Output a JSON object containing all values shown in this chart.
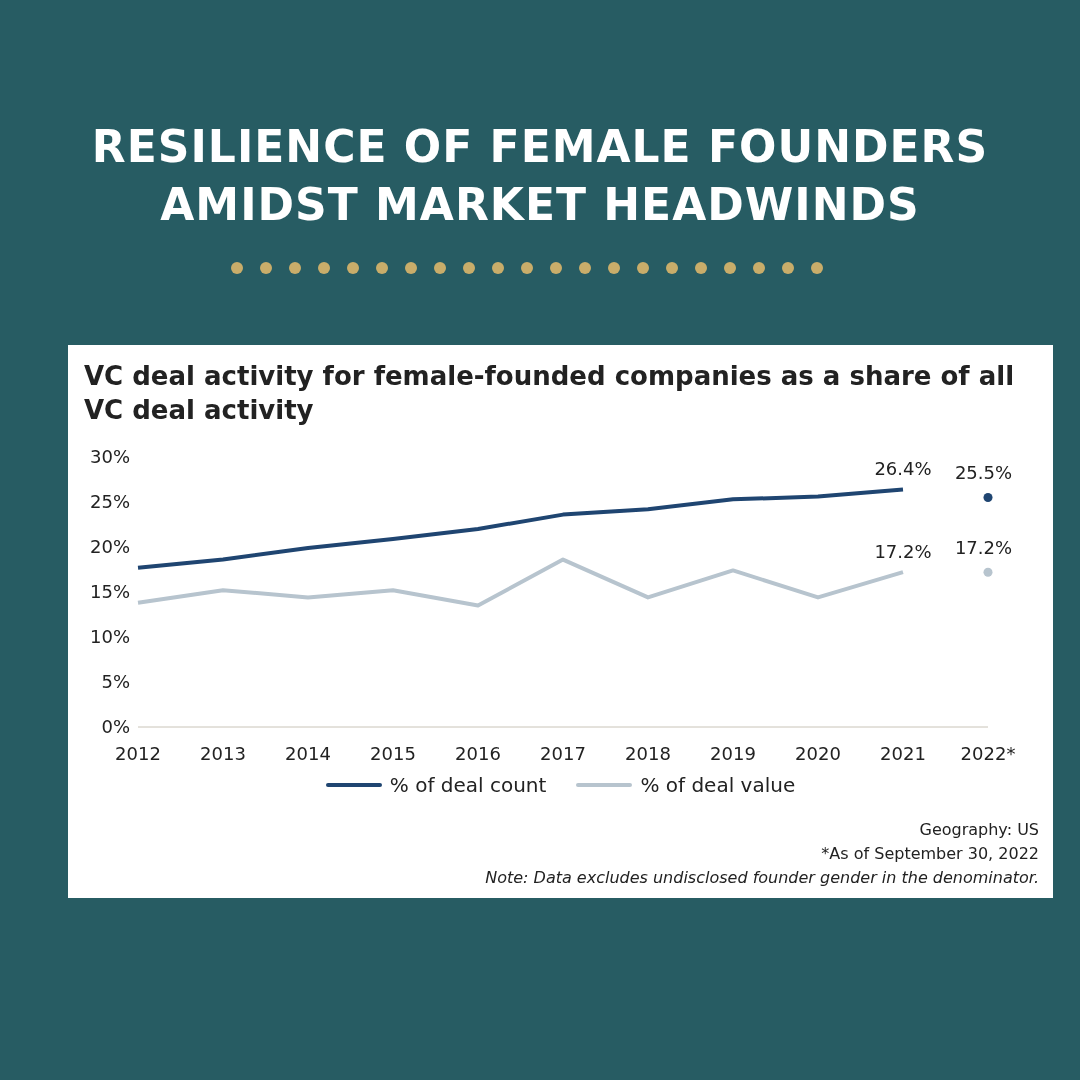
{
  "chart_data": {
    "type": "line",
    "title": "RESILIENCE OF FEMALE FOUNDERS AMIDST MARKET HEADWINDS",
    "subtitle": "VC deal activity for female-founded companies as a share of all VC deal activity",
    "categories": [
      "2012",
      "2013",
      "2014",
      "2015",
      "2016",
      "2017",
      "2018",
      "2019",
      "2020",
      "2021",
      "2022*"
    ],
    "series": [
      {
        "name": "% of deal count",
        "color": "#1f4571",
        "values": [
          17.7,
          18.6,
          19.9,
          20.9,
          22.0,
          23.6,
          24.2,
          25.3,
          25.6,
          26.4,
          null
        ],
        "value_labels": [
          null,
          null,
          null,
          null,
          null,
          null,
          null,
          null,
          null,
          "26.4%",
          null
        ]
      },
      {
        "name": "% of deal value",
        "color": "#b7c4ce",
        "values": [
          13.8,
          15.2,
          14.4,
          15.2,
          13.5,
          18.6,
          14.4,
          17.4,
          14.4,
          17.2,
          null
        ],
        "value_labels": [
          null,
          null,
          null,
          null,
          null,
          null,
          null,
          null,
          null,
          "17.2%",
          null
        ]
      },
      {
        "type": "scatter",
        "marker": "circle",
        "color": "#1f4571",
        "values": [
          null,
          null,
          null,
          null,
          null,
          null,
          null,
          null,
          null,
          null,
          25.5
        ],
        "value_labels": [
          null,
          null,
          null,
          null,
          null,
          null,
          null,
          null,
          null,
          null,
          "25.5%"
        ]
      },
      {
        "type": "scatter",
        "marker": "circle",
        "color": "#b7c4ce",
        "values": [
          null,
          null,
          null,
          null,
          null,
          null,
          null,
          null,
          null,
          null,
          17.2
        ],
        "value_labels": [
          null,
          null,
          null,
          null,
          null,
          null,
          null,
          null,
          null,
          null,
          "17.2%"
        ]
      }
    ],
    "ylim": [
      0,
      30
    ],
    "yticks": [
      {
        "value": 0,
        "label": "0%"
      },
      {
        "value": 5,
        "label": "5%"
      },
      {
        "value": 10,
        "label": "10%"
      },
      {
        "value": 15,
        "label": "15%"
      },
      {
        "value": 20,
        "label": "20%"
      },
      {
        "value": 25,
        "label": "25%"
      },
      {
        "value": 30,
        "label": "30%"
      }
    ],
    "marker": "none",
    "line_style": "solid",
    "grid": false,
    "legend": "bottom",
    "annotations": [
      "Geography: US",
      "*As of September 30, 2022",
      "Note: Data excludes undisclosed founder gender in the denominator."
    ]
  }
}
